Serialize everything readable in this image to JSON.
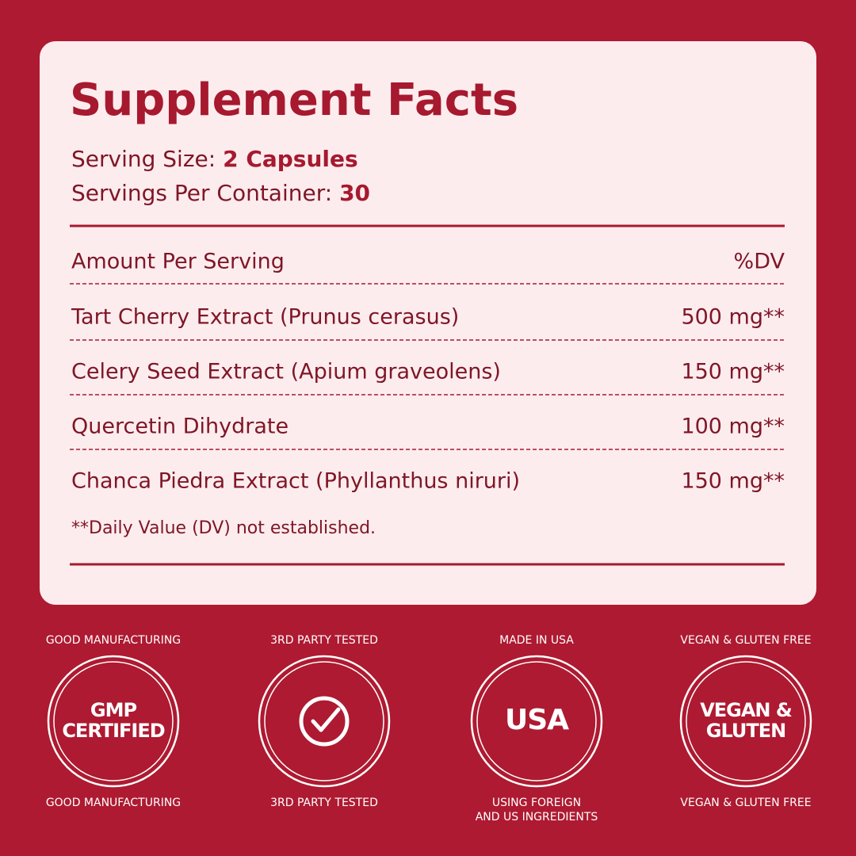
{
  "panel": {
    "title": "Supplement Facts",
    "serving_size": {
      "label": "Serving Size:",
      "value": "2 Capsules"
    },
    "servings_per_container": {
      "label": "Servings Per Container:",
      "value": 30
    },
    "header": {
      "left": "Amount Per Serving",
      "right": "%DV"
    },
    "rows": [
      [
        "Tart Cherry Extract (Prunus cerasus)",
        "500 mg**"
      ],
      [
        "Celery Seed Extract (Apium graveolens)",
        "150 mg**"
      ],
      [
        "Quercetin Dihydrate",
        "100 mg**"
      ],
      [
        "Chanca Piedra Extract (Phyllanthus niruri)",
        "150 mg**"
      ]
    ],
    "footnote": "**Daily Value (DV) not established."
  },
  "badges": [
    {
      "top": "GOOD MANUFACTURING",
      "center": [
        "GMP",
        "CERTIFIED"
      ],
      "bottom": [
        "GOOD MANUFACTURING"
      ]
    },
    {
      "top": "3RD PARTY TESTED",
      "center": [],
      "bottom": [
        "3RD PARTY TESTED"
      ]
    },
    {
      "top": "MADE IN USA",
      "center": [
        "USA"
      ],
      "bottom": [
        "USING FOREIGN",
        "AND US INGREDIENTS"
      ]
    },
    {
      "top": "VEGAN & GLUTEN FREE",
      "center": [
        "VEGAN &",
        "GLUTEN"
      ],
      "bottom": [
        "VEGAN & GLUTEN FREE"
      ]
    }
  ]
}
